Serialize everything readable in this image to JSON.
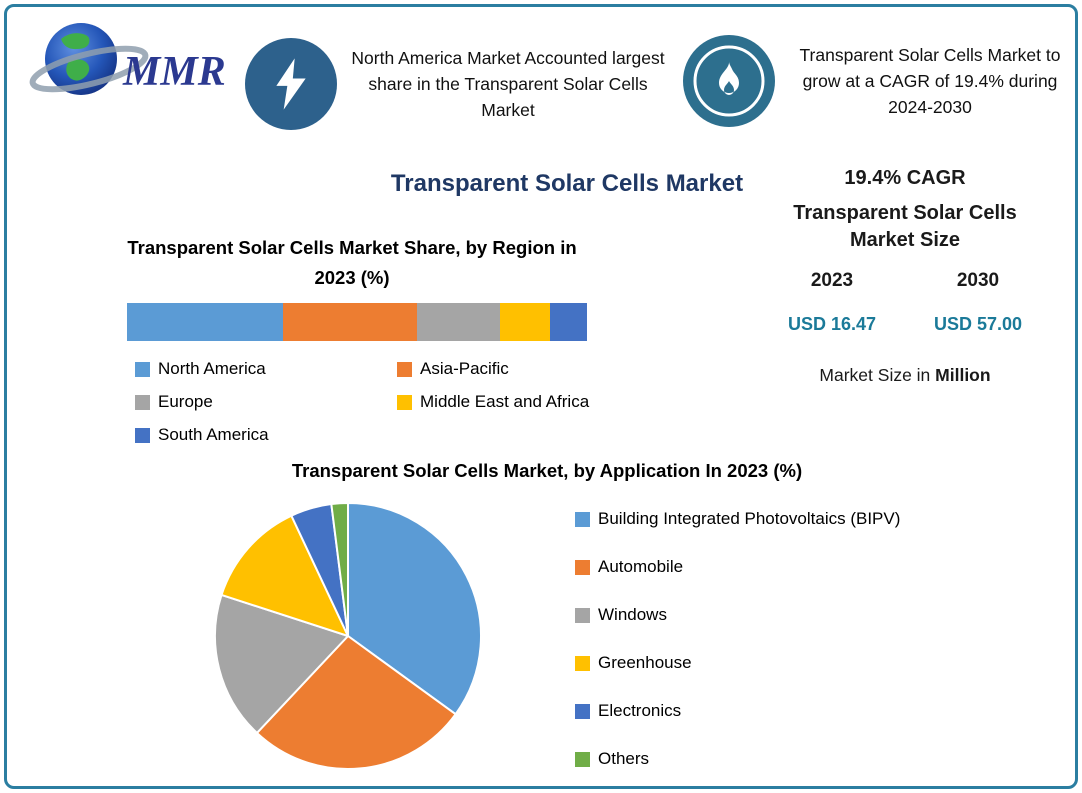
{
  "logo": {
    "text": "MMR"
  },
  "header": {
    "callout1": {
      "icon": "lightning-bolt",
      "text": "North America Market Accounted largest share in the Transparent Solar Cells Market"
    },
    "callout2": {
      "icon": "flame",
      "text": "Transparent Solar Cells Market to grow at a CAGR of 19.4% during 2024-2030"
    }
  },
  "title": "Transparent Solar Cells Market",
  "stats": {
    "cagr": "19.4% CAGR",
    "market_size_title": "Transparent Solar Cells Market Size",
    "year_left": "2023",
    "year_right": "2030",
    "value_left": "USD 16.47",
    "value_right": "USD 57.00",
    "note_prefix": "Market Size in ",
    "note_bold": "Million"
  },
  "colors": {
    "frame_border": "#2b7ea1",
    "title_navy": "#1f3864",
    "accent_teal": "#1b7a99",
    "icon_circle_blue": "#2d618c"
  },
  "chart_data": [
    {
      "type": "bar",
      "variant": "horizontal-stacked",
      "title": "Transparent Solar Cells Market Share, by Region in 2023 (%)",
      "xlim": [
        0,
        100
      ],
      "legend_position": "bottom",
      "series": [
        {
          "name": "North America",
          "value": 34,
          "color": "#5b9bd5"
        },
        {
          "name": "Asia-Pacific",
          "value": 29,
          "color": "#ed7d31"
        },
        {
          "name": "Europe",
          "value": 18,
          "color": "#a5a5a5"
        },
        {
          "name": "Middle East and Africa",
          "value": 11,
          "color": "#ffc000"
        },
        {
          "name": "South America",
          "value": 8,
          "color": "#4472c4"
        }
      ]
    },
    {
      "type": "pie",
      "title": "Transparent Solar Cells Market, by Application In 2023 (%)",
      "start_angle_deg": 0,
      "direction": "clockwise",
      "legend_position": "right",
      "slices": [
        {
          "name": "Building Integrated Photovoltaics (BIPV)",
          "value": 35,
          "color": "#5b9bd5"
        },
        {
          "name": "Automobile",
          "value": 27,
          "color": "#ed7d31"
        },
        {
          "name": "Windows",
          "value": 18,
          "color": "#a5a5a5"
        },
        {
          "name": "Greenhouse",
          "value": 13,
          "color": "#ffc000"
        },
        {
          "name": "Electronics",
          "value": 5,
          "color": "#4472c4"
        },
        {
          "name": "Others",
          "value": 2,
          "color": "#70ad47"
        }
      ]
    }
  ]
}
